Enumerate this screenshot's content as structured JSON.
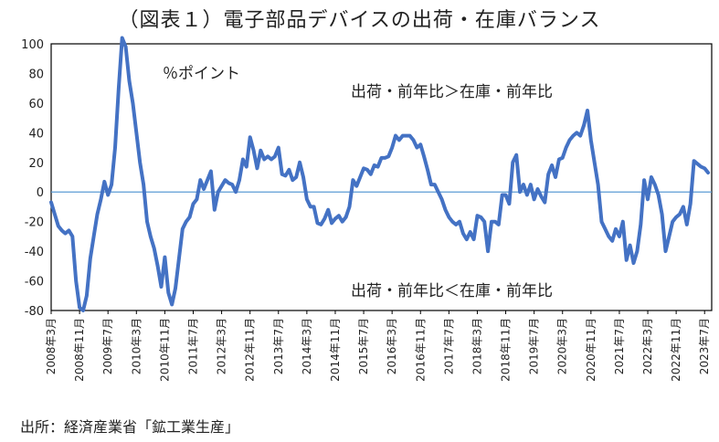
{
  "title": "（図表１）電子部品デバイスの出荷・在庫バランス",
  "source": "出所：経済産業省「鉱工業生産」",
  "colors": {
    "line": "#4472C4",
    "zero_line": "#5B9BD5",
    "frame": "#000000"
  },
  "chart_data": {
    "type": "line",
    "unit_label": "％ポイント",
    "annotations": [
      "出荷・前年比＞在庫・前年比",
      "出荷・前年比＜在庫・前年比"
    ],
    "ylim": [
      -80,
      100
    ],
    "yticks": [
      -80,
      -60,
      -40,
      -20,
      0,
      20,
      40,
      60,
      80,
      100
    ],
    "grid": false,
    "xlim": [
      "2008-03",
      "2023-09"
    ],
    "xticks": [
      "2008年3月",
      "2008年11月",
      "2009年7月",
      "2010年3月",
      "2010年11月",
      "2011年7月",
      "2012年3月",
      "2012年11月",
      "2013年7月",
      "2014年3月",
      "2014年11月",
      "2015年7月",
      "2016年3月",
      "2016年11月",
      "2017年7月",
      "2018年3月",
      "2018年11月",
      "2019年7月",
      "2020年3月",
      "2020年11月",
      "2021年7月",
      "2022年3月",
      "2022年11月",
      "2023年7月"
    ],
    "series": [
      {
        "points": [
          [
            "2008-03",
            -7
          ],
          [
            "2008-04",
            -15
          ],
          [
            "2008-05",
            -23
          ],
          [
            "2008-06",
            -26
          ],
          [
            "2008-07",
            -28
          ],
          [
            "2008-08",
            -26
          ],
          [
            "2008-09",
            -30
          ],
          [
            "2008-10",
            -60
          ],
          [
            "2008-11",
            -78
          ],
          [
            "2008-12",
            -80
          ],
          [
            "2009-01",
            -70
          ],
          [
            "2009-02",
            -45
          ],
          [
            "2009-03",
            -30
          ],
          [
            "2009-04",
            -15
          ],
          [
            "2009-05",
            -5
          ],
          [
            "2009-06",
            7
          ],
          [
            "2009-07",
            -2
          ],
          [
            "2009-08",
            5
          ],
          [
            "2009-09",
            30
          ],
          [
            "2009-10",
            70
          ],
          [
            "2009-11",
            104
          ],
          [
            "2009-12",
            98
          ],
          [
            "2010-01",
            75
          ],
          [
            "2010-02",
            60
          ],
          [
            "2010-03",
            40
          ],
          [
            "2010-04",
            20
          ],
          [
            "2010-05",
            5
          ],
          [
            "2010-06",
            -20
          ],
          [
            "2010-07",
            -30
          ],
          [
            "2010-08",
            -38
          ],
          [
            "2010-09",
            -50
          ],
          [
            "2010-10",
            -64
          ],
          [
            "2010-11",
            -44
          ],
          [
            "2010-12",
            -68
          ],
          [
            "2011-01",
            -76
          ],
          [
            "2011-02",
            -65
          ],
          [
            "2011-03",
            -45
          ],
          [
            "2011-04",
            -25
          ],
          [
            "2011-05",
            -20
          ],
          [
            "2011-06",
            -17
          ],
          [
            "2011-07",
            -8
          ],
          [
            "2011-08",
            -5
          ],
          [
            "2011-09",
            8
          ],
          [
            "2011-10",
            2
          ],
          [
            "2011-11",
            8
          ],
          [
            "2011-12",
            14
          ],
          [
            "2012-01",
            -12
          ],
          [
            "2012-02",
            0
          ],
          [
            "2012-03",
            4
          ],
          [
            "2012-04",
            8
          ],
          [
            "2012-05",
            6
          ],
          [
            "2012-06",
            5
          ],
          [
            "2012-07",
            0
          ],
          [
            "2012-08",
            8
          ],
          [
            "2012-09",
            22
          ],
          [
            "2012-10",
            17
          ],
          [
            "2012-11",
            37
          ],
          [
            "2012-12",
            28
          ],
          [
            "2013-01",
            16
          ],
          [
            "2013-02",
            28
          ],
          [
            "2013-03",
            22
          ],
          [
            "2013-04",
            24
          ],
          [
            "2013-05",
            22
          ],
          [
            "2013-06",
            24
          ],
          [
            "2013-07",
            30
          ],
          [
            "2013-08",
            12
          ],
          [
            "2013-09",
            11
          ],
          [
            "2013-10",
            15
          ],
          [
            "2013-11",
            8
          ],
          [
            "2013-12",
            10
          ],
          [
            "2014-01",
            20
          ],
          [
            "2014-02",
            10
          ],
          [
            "2014-03",
            -5
          ],
          [
            "2014-04",
            -10
          ],
          [
            "2014-05",
            -10
          ],
          [
            "2014-06",
            -21
          ],
          [
            "2014-07",
            -22
          ],
          [
            "2014-08",
            -18
          ],
          [
            "2014-09",
            -12
          ],
          [
            "2014-10",
            -21
          ],
          [
            "2014-11",
            -18
          ],
          [
            "2014-12",
            -16
          ],
          [
            "2015-01",
            -20
          ],
          [
            "2015-02",
            -17
          ],
          [
            "2015-03",
            -10
          ],
          [
            "2015-04",
            8
          ],
          [
            "2015-05",
            4
          ],
          [
            "2015-06",
            10
          ],
          [
            "2015-07",
            16
          ],
          [
            "2015-08",
            15
          ],
          [
            "2015-09",
            12
          ],
          [
            "2015-10",
            18
          ],
          [
            "2015-11",
            17
          ],
          [
            "2015-12",
            23
          ],
          [
            "2016-01",
            23
          ],
          [
            "2016-02",
            24
          ],
          [
            "2016-03",
            30
          ],
          [
            "2016-04",
            38
          ],
          [
            "2016-05",
            35
          ],
          [
            "2016-06",
            38
          ],
          [
            "2016-07",
            38
          ],
          [
            "2016-08",
            38
          ],
          [
            "2016-09",
            35
          ],
          [
            "2016-10",
            30
          ],
          [
            "2016-11",
            32
          ],
          [
            "2016-12",
            24
          ],
          [
            "2017-01",
            15
          ],
          [
            "2017-02",
            5
          ],
          [
            "2017-03",
            5
          ],
          [
            "2017-04",
            0
          ],
          [
            "2017-05",
            -5
          ],
          [
            "2017-06",
            -12
          ],
          [
            "2017-07",
            -17
          ],
          [
            "2017-08",
            -20
          ],
          [
            "2017-09",
            -22
          ],
          [
            "2017-10",
            -20
          ],
          [
            "2017-11",
            -28
          ],
          [
            "2017-12",
            -32
          ],
          [
            "2018-01",
            -27
          ],
          [
            "2018-02",
            -32
          ],
          [
            "2018-03",
            -16
          ],
          [
            "2018-04",
            -17
          ],
          [
            "2018-05",
            -20
          ],
          [
            "2018-06",
            -40
          ],
          [
            "2018-07",
            -20
          ],
          [
            "2018-08",
            -20
          ],
          [
            "2018-09",
            -22
          ],
          [
            "2018-10",
            -2
          ],
          [
            "2018-11",
            -2
          ],
          [
            "2018-12",
            -8
          ],
          [
            "2019-01",
            20
          ],
          [
            "2019-02",
            25
          ],
          [
            "2019-03",
            0
          ],
          [
            "2019-04",
            5
          ],
          [
            "2019-05",
            -2
          ],
          [
            "2019-06",
            5
          ],
          [
            "2019-07",
            -5
          ],
          [
            "2019-08",
            2
          ],
          [
            "2019-09",
            -3
          ],
          [
            "2019-10",
            -7
          ],
          [
            "2019-11",
            12
          ],
          [
            "2019-12",
            18
          ],
          [
            "2020-01",
            10
          ],
          [
            "2020-02",
            22
          ],
          [
            "2020-03",
            23
          ],
          [
            "2020-04",
            30
          ],
          [
            "2020-05",
            35
          ],
          [
            "2020-06",
            38
          ],
          [
            "2020-07",
            40
          ],
          [
            "2020-08",
            38
          ],
          [
            "2020-09",
            45
          ],
          [
            "2020-10",
            55
          ],
          [
            "2020-11",
            35
          ],
          [
            "2020-12",
            20
          ],
          [
            "2021-01",
            5
          ],
          [
            "2021-02",
            -20
          ],
          [
            "2021-03",
            -25
          ],
          [
            "2021-04",
            -30
          ],
          [
            "2021-05",
            -33
          ],
          [
            "2021-06",
            -25
          ],
          [
            "2021-07",
            -30
          ],
          [
            "2021-08",
            -20
          ],
          [
            "2021-09",
            -46
          ],
          [
            "2021-10",
            -36
          ],
          [
            "2021-11",
            -48
          ],
          [
            "2021-12",
            -40
          ],
          [
            "2022-01",
            -22
          ],
          [
            "2022-02",
            8
          ],
          [
            "2022-03",
            -5
          ],
          [
            "2022-04",
            10
          ],
          [
            "2022-05",
            5
          ],
          [
            "2022-06",
            -2
          ],
          [
            "2022-07",
            -15
          ],
          [
            "2022-08",
            -40
          ],
          [
            "2022-09",
            -30
          ],
          [
            "2022-10",
            -20
          ],
          [
            "2022-11",
            -17
          ],
          [
            "2022-12",
            -15
          ],
          [
            "2023-01",
            -10
          ],
          [
            "2023-02",
            -22
          ],
          [
            "2023-03",
            -8
          ],
          [
            "2023-04",
            21
          ],
          [
            "2023-05",
            19
          ],
          [
            "2023-06",
            17
          ],
          [
            "2023-07",
            16
          ],
          [
            "2023-08",
            13
          ]
        ]
      }
    ]
  }
}
